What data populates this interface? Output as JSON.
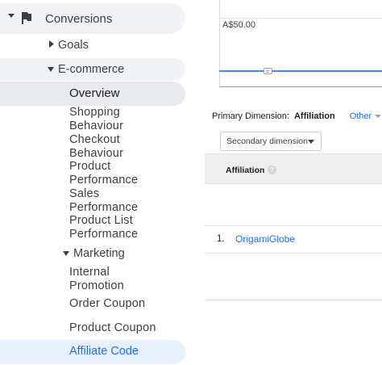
{
  "sidebar": {
    "conversions": {
      "label": "Conversions",
      "icon": "flag-icon"
    },
    "goals": {
      "label": "Goals"
    },
    "ecommerce": {
      "label": "E-commerce"
    },
    "overview": {
      "label": "Overview"
    },
    "items": [
      {
        "line1": "Shopping",
        "line2": "Behaviour"
      },
      {
        "line1": "Checkout",
        "line2": "Behaviour"
      },
      {
        "line1": "Product",
        "line2": "Performance"
      },
      {
        "line1": "Sales",
        "line2": "Performance"
      },
      {
        "line1": "Product List",
        "line2": "Performance"
      }
    ],
    "marketing": {
      "label": "Marketing"
    },
    "marketing_items": [
      {
        "line1": "Internal",
        "line2": "Promotion"
      },
      {
        "label": "Order Coupon"
      },
      {
        "label": "Product Coupon"
      },
      {
        "label": "Affiliate Code"
      }
    ]
  },
  "chart": {
    "y_value_label": "A$50.00"
  },
  "dimension": {
    "primary_label": "Primary Dimension:",
    "primary_value": "Affiliation",
    "other_label": "Other",
    "secondary_button": "Secondary dimension"
  },
  "table": {
    "header": "Affiliation",
    "help": "?",
    "rows": [
      {
        "num": "1.",
        "value": "OrigamiGlobe"
      }
    ]
  },
  "colors": {
    "accent": "#1a73e8",
    "selected_bg": "#e8eaed",
    "active_bg": "#e8f0fe",
    "line": "#4285f4"
  }
}
